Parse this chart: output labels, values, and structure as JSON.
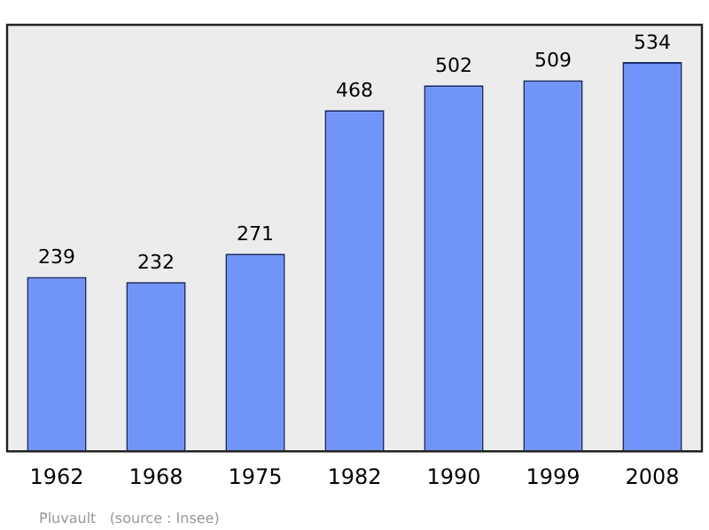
{
  "chart_data": {
    "type": "bar",
    "categories": [
      "1962",
      "1968",
      "1975",
      "1982",
      "1990",
      "1999",
      "2008"
    ],
    "values": [
      239,
      232,
      271,
      468,
      502,
      509,
      534
    ],
    "color": "#7094f8",
    "ylim": [
      0,
      585
    ],
    "tick_labels": "x",
    "legend": false,
    "data_labels": true,
    "annotations": [
      "Pluvault   (source : Insee)"
    ]
  }
}
